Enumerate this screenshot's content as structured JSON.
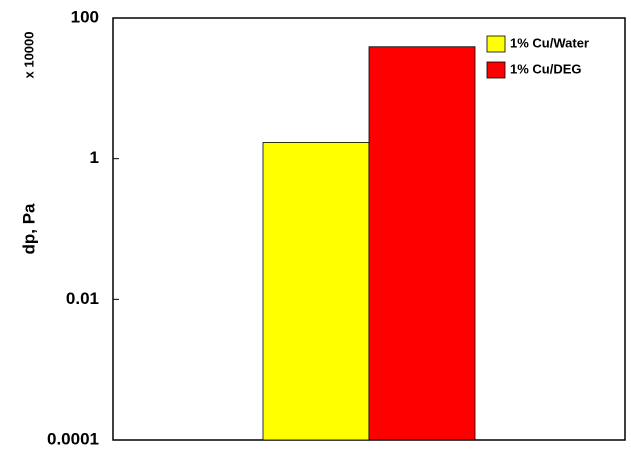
{
  "chart_data": {
    "type": "bar",
    "y_label": "dp, Pa",
    "y_multiplier": "x 10000",
    "categories": [
      null
    ],
    "series": [
      {
        "name": "1%  Cu/Water",
        "color": "#ffff00",
        "values": [
          1.7
        ]
      },
      {
        "name": "1% Cu/DEG",
        "color": "#ff0000",
        "values": [
          39
        ]
      }
    ],
    "ylim": [
      0.0001,
      100
    ],
    "yticks": [
      0.0001,
      0.01,
      1,
      100
    ],
    "log_y": true,
    "grid": false,
    "legend": "top-right"
  }
}
